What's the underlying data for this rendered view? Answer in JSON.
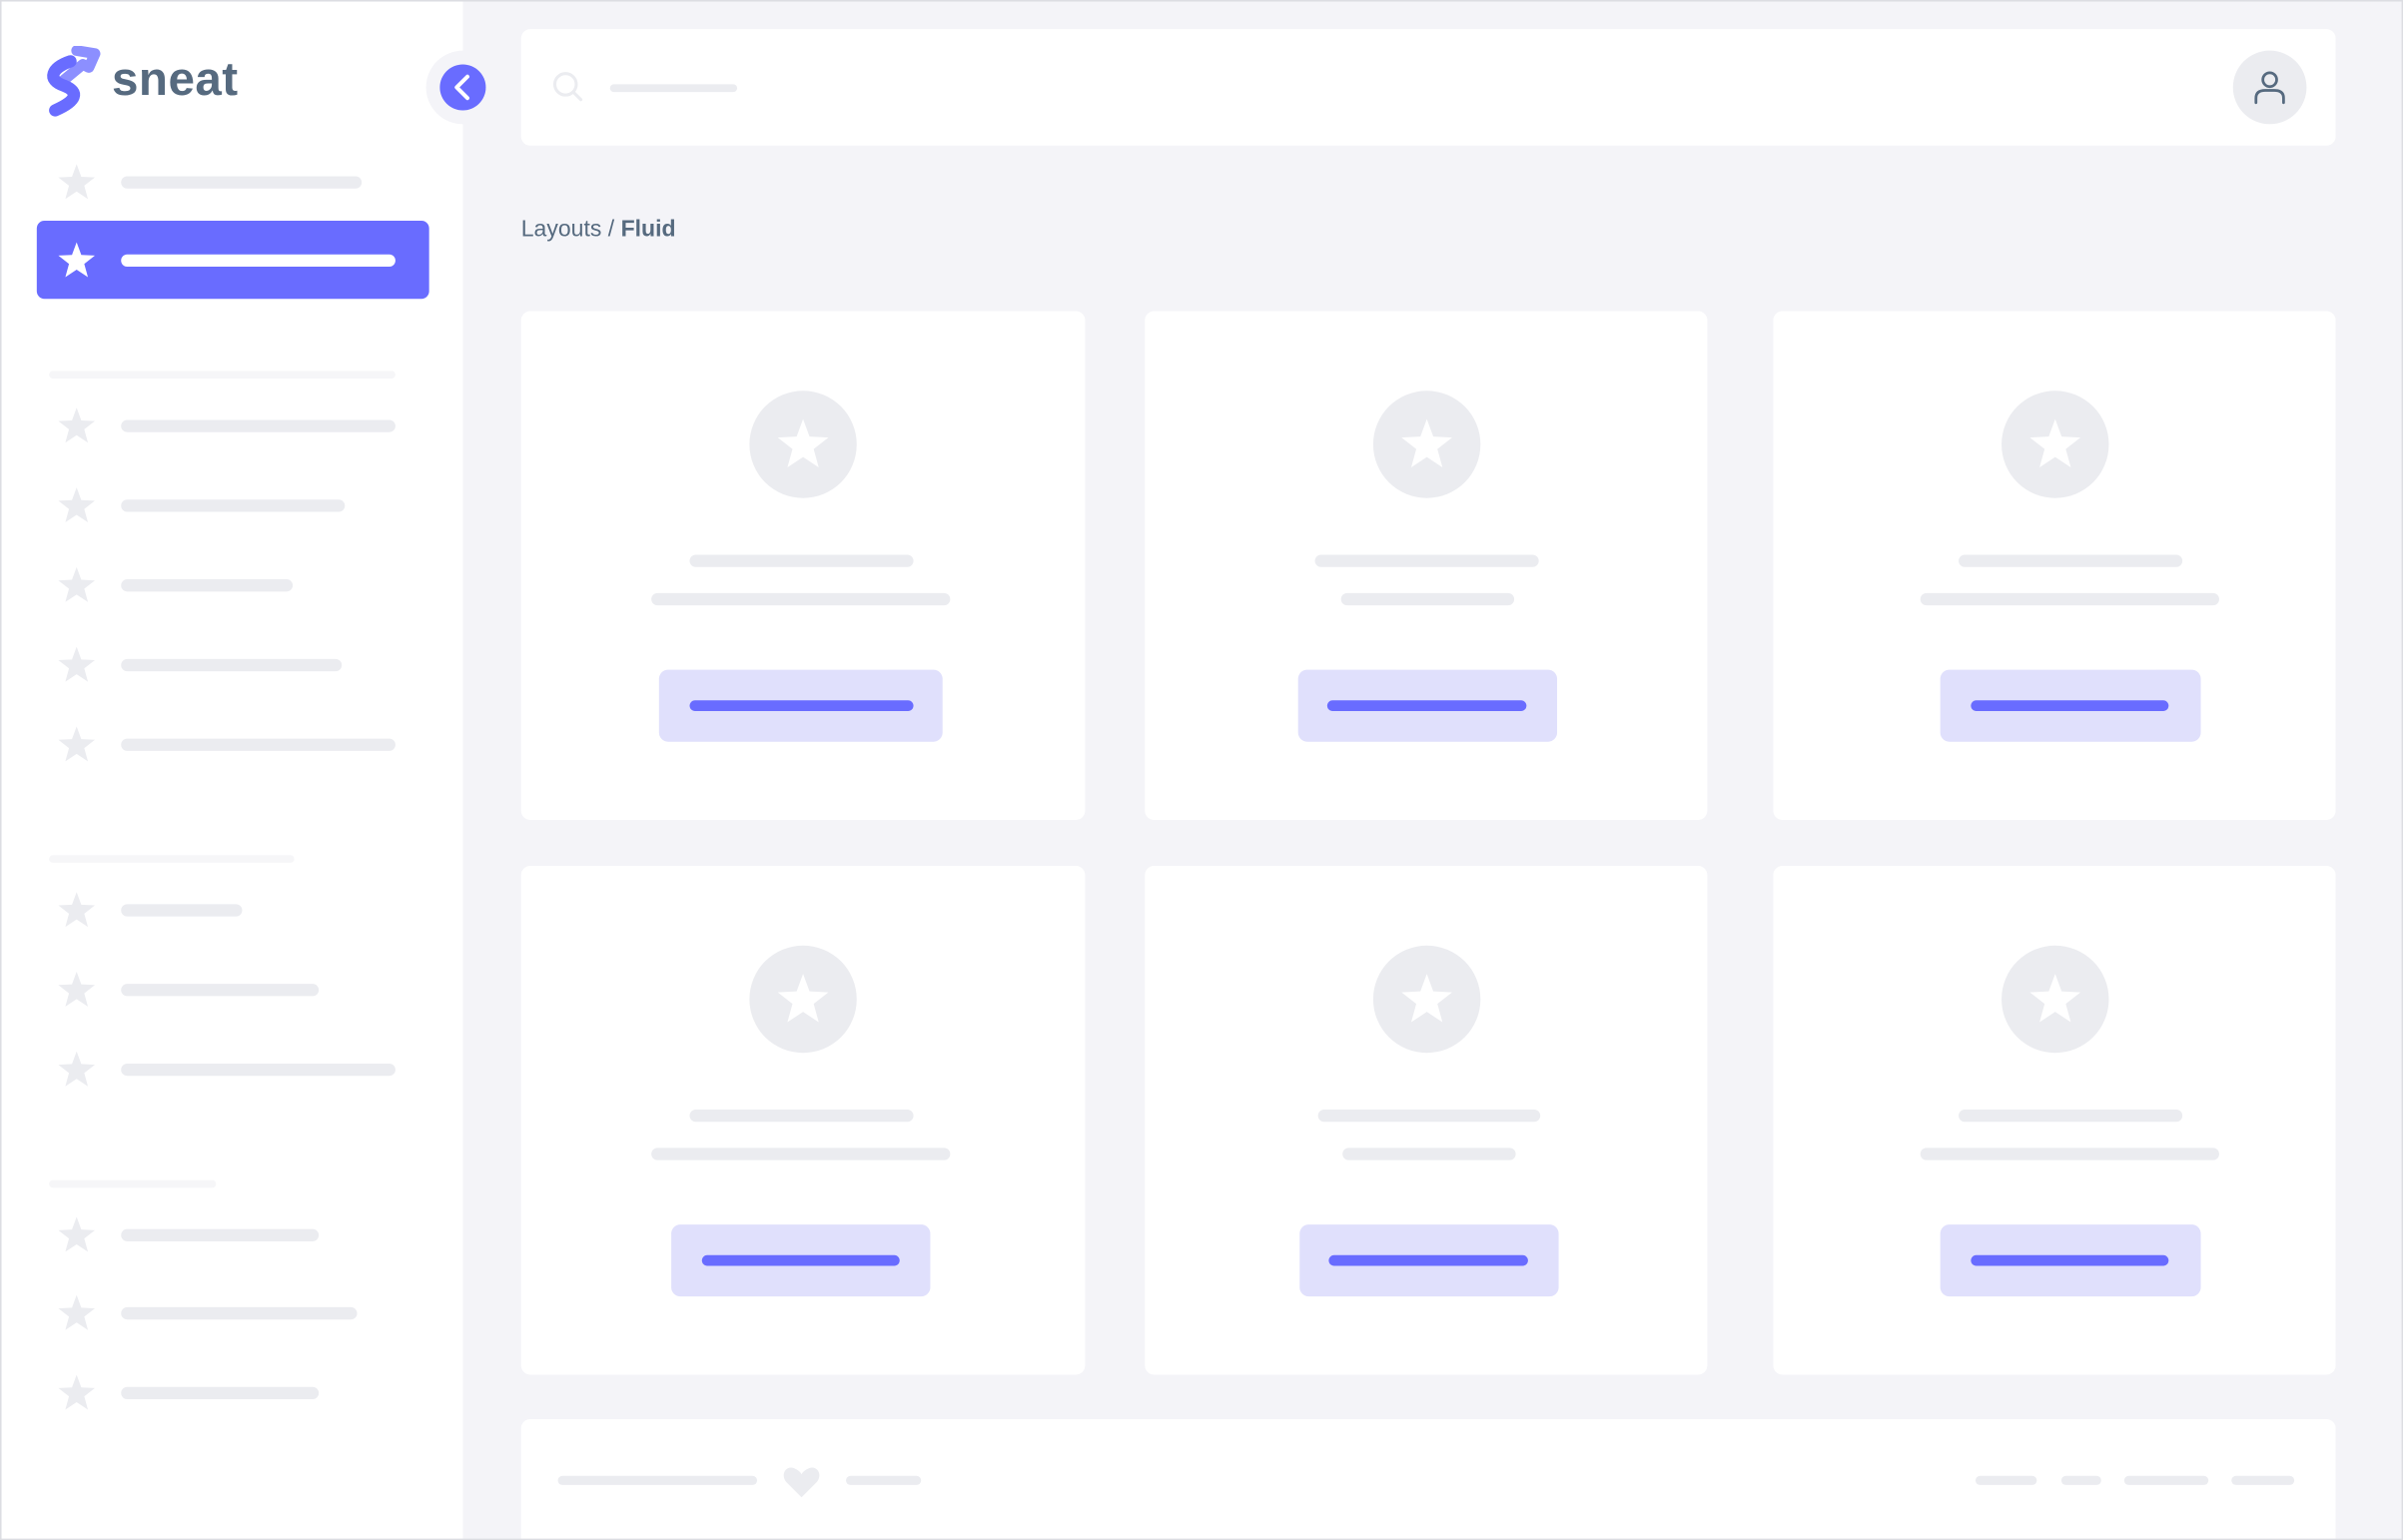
{
  "brand": {
    "name": "sneat",
    "accent": "#696cff",
    "text_color": "#566a7f"
  },
  "sidebar": {
    "collapse_icon": "chevron-left-icon",
    "active_index": 1,
    "item_icon": "star-icon"
  },
  "header": {
    "search_icon": "search-icon",
    "avatar_icon": "user-icon"
  },
  "breadcrumb": {
    "parent": "Layouts",
    "separator": "/",
    "current": "Fluid"
  },
  "cards": {
    "count": 6,
    "icon": "star-icon"
  },
  "footer": {
    "icon": "heart-icon"
  }
}
